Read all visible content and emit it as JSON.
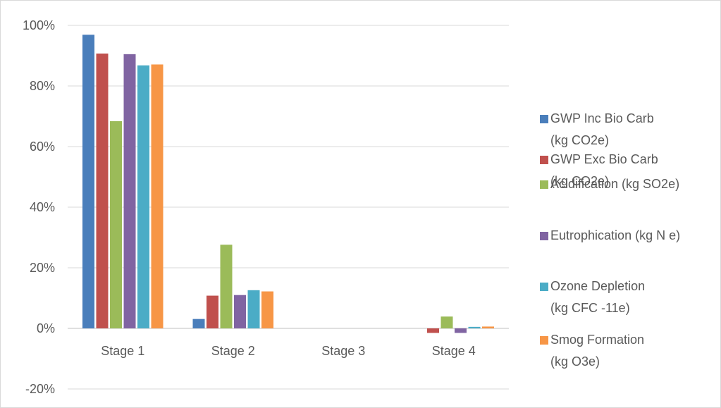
{
  "chart_data": {
    "type": "bar",
    "categories": [
      "Stage 1",
      "Stage 2",
      "Stage 3",
      "Stage 4"
    ],
    "y_ticks": [
      "-20%",
      "0%",
      "20%",
      "40%",
      "60%",
      "80%",
      "100%"
    ],
    "ylim": [
      -20,
      100
    ],
    "grid": true,
    "legend_position": "right",
    "series": [
      {
        "name": "GWP Inc Bio Carb (kg CO2e)",
        "legend_lines": [
          "GWP Inc Bio Carb",
          "(kg CO2e)"
        ],
        "color": "#4a7ebb",
        "values": [
          96.9,
          3.1,
          0,
          0.0
        ]
      },
      {
        "name": "GWP Exc Bio Carb (kg CO2e)",
        "legend_lines": [
          "GWP Exc Bio Carb",
          "(kg CO2e)"
        ],
        "color": "#c0504d",
        "values": [
          90.7,
          10.8,
          0,
          -1.5
        ]
      },
      {
        "name": "Acidification (kg SO2e)",
        "legend_lines": [
          "Acidification (kg SO2e)"
        ],
        "color": "#9bbb59",
        "values": [
          68.4,
          27.6,
          0,
          3.9
        ]
      },
      {
        "name": "Eutrophication (kg N e)",
        "legend_lines": [
          "Eutrophication (kg N e)"
        ],
        "color": "#8064a2",
        "values": [
          90.5,
          11.0,
          0,
          -1.5
        ]
      },
      {
        "name": "Ozone Depletion (kg CFC -11e)",
        "legend_lines": [
          "Ozone Depletion",
          "(kg CFC -11e)"
        ],
        "color": "#4bacc6",
        "values": [
          86.8,
          12.6,
          0,
          0.5
        ]
      },
      {
        "name": "Smog Formation (kg O3e)",
        "legend_lines": [
          "Smog Formation",
          "(kg O3e)"
        ],
        "color": "#f79646",
        "values": [
          87.1,
          12.2,
          0,
          0.6
        ]
      }
    ]
  }
}
